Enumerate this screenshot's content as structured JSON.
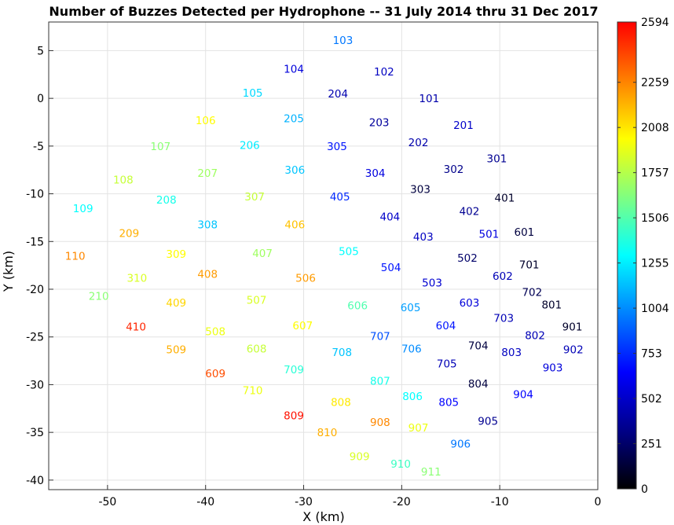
{
  "chart_data": {
    "type": "scatter",
    "title": "Number of Buzzes Detected per Hydrophone -- 31 July 2014 thru 31 Dec 2017",
    "xlabel": "X (km)",
    "ylabel": "Y (km)",
    "xlim": [
      -56,
      0
    ],
    "ylim": [
      -41,
      8
    ],
    "xticks": [
      -50,
      -40,
      -30,
      -20,
      -10,
      0
    ],
    "yticks": [
      5,
      0,
      -5,
      -10,
      -15,
      -20,
      -25,
      -30,
      -35,
      -40
    ],
    "grid": true,
    "colormap": "jet",
    "colorbar": {
      "min": 0,
      "max": 2594,
      "ticks": [
        2594,
        2259,
        2008,
        1757,
        1506,
        1255,
        1004,
        753,
        502,
        251,
        0
      ]
    },
    "points": [
      {
        "label": "103",
        "x": -26.0,
        "y": 6.1,
        "value": 950
      },
      {
        "label": "104",
        "x": -31.0,
        "y": 3.1,
        "value": 550
      },
      {
        "label": "102",
        "x": -21.8,
        "y": 2.8,
        "value": 480
      },
      {
        "label": "105",
        "x": -35.2,
        "y": 0.6,
        "value": 1200
      },
      {
        "label": "204",
        "x": -26.5,
        "y": 0.5,
        "value": 430
      },
      {
        "label": "101",
        "x": -17.2,
        "y": 0.0,
        "value": 420
      },
      {
        "label": "106",
        "x": -40.0,
        "y": -2.3,
        "value": 1950
      },
      {
        "label": "205",
        "x": -31.0,
        "y": -2.1,
        "value": 1100
      },
      {
        "label": "203",
        "x": -22.3,
        "y": -2.5,
        "value": 380
      },
      {
        "label": "201",
        "x": -13.7,
        "y": -2.8,
        "value": 500
      },
      {
        "label": "107",
        "x": -44.6,
        "y": -5.0,
        "value": 1650
      },
      {
        "label": "206",
        "x": -35.5,
        "y": -4.9,
        "value": 1250
      },
      {
        "label": "305",
        "x": -26.6,
        "y": -5.0,
        "value": 700
      },
      {
        "label": "202",
        "x": -18.3,
        "y": -4.6,
        "value": 420
      },
      {
        "label": "301",
        "x": -10.3,
        "y": -6.3,
        "value": 350
      },
      {
        "label": "108",
        "x": -48.4,
        "y": -8.5,
        "value": 1800
      },
      {
        "label": "207",
        "x": -39.8,
        "y": -7.8,
        "value": 1700
      },
      {
        "label": "306",
        "x": -30.9,
        "y": -7.5,
        "value": 1150
      },
      {
        "label": "304",
        "x": -22.7,
        "y": -7.8,
        "value": 560
      },
      {
        "label": "302",
        "x": -14.7,
        "y": -7.4,
        "value": 330
      },
      {
        "label": "109",
        "x": -52.5,
        "y": -11.5,
        "value": 1300
      },
      {
        "label": "208",
        "x": -44.0,
        "y": -10.6,
        "value": 1350
      },
      {
        "label": "307",
        "x": -35.0,
        "y": -10.3,
        "value": 1800
      },
      {
        "label": "405",
        "x": -26.3,
        "y": -10.3,
        "value": 750
      },
      {
        "label": "303",
        "x": -18.1,
        "y": -9.5,
        "value": 150
      },
      {
        "label": "401",
        "x": -9.5,
        "y": -10.4,
        "value": 100
      },
      {
        "label": "404",
        "x": -21.2,
        "y": -12.4,
        "value": 500
      },
      {
        "label": "402",
        "x": -13.1,
        "y": -11.8,
        "value": 350
      },
      {
        "label": "209",
        "x": -47.8,
        "y": -14.1,
        "value": 2150
      },
      {
        "label": "308",
        "x": -39.8,
        "y": -13.2,
        "value": 1150
      },
      {
        "label": "406",
        "x": -30.9,
        "y": -13.2,
        "value": 2100
      },
      {
        "label": "403",
        "x": -17.8,
        "y": -14.5,
        "value": 480
      },
      {
        "label": "501",
        "x": -11.1,
        "y": -14.2,
        "value": 560
      },
      {
        "label": "601",
        "x": -7.5,
        "y": -14.0,
        "value": 150
      },
      {
        "label": "110",
        "x": -53.3,
        "y": -16.5,
        "value": 2250
      },
      {
        "label": "309",
        "x": -43.0,
        "y": -16.3,
        "value": 1950
      },
      {
        "label": "407",
        "x": -34.2,
        "y": -16.2,
        "value": 1700
      },
      {
        "label": "505",
        "x": -25.4,
        "y": -16.0,
        "value": 1300
      },
      {
        "label": "502",
        "x": -13.3,
        "y": -16.7,
        "value": 250
      },
      {
        "label": "701",
        "x": -7.0,
        "y": -17.4,
        "value": 100
      },
      {
        "label": "504",
        "x": -21.1,
        "y": -17.7,
        "value": 700
      },
      {
        "label": "310",
        "x": -47.0,
        "y": -18.8,
        "value": 1850
      },
      {
        "label": "408",
        "x": -39.8,
        "y": -18.4,
        "value": 2200
      },
      {
        "label": "506",
        "x": -29.8,
        "y": -18.8,
        "value": 2200
      },
      {
        "label": "602",
        "x": -9.7,
        "y": -18.6,
        "value": 450
      },
      {
        "label": "503",
        "x": -16.9,
        "y": -19.3,
        "value": 520
      },
      {
        "label": "210",
        "x": -50.9,
        "y": -20.7,
        "value": 1650
      },
      {
        "label": "702",
        "x": -6.7,
        "y": -20.3,
        "value": 200
      },
      {
        "label": "409",
        "x": -43.0,
        "y": -21.4,
        "value": 2050
      },
      {
        "label": "507",
        "x": -34.8,
        "y": -21.1,
        "value": 1850
      },
      {
        "label": "606",
        "x": -24.5,
        "y": -21.7,
        "value": 1500
      },
      {
        "label": "605",
        "x": -19.1,
        "y": -21.9,
        "value": 1050
      },
      {
        "label": "603",
        "x": -13.1,
        "y": -21.4,
        "value": 550
      },
      {
        "label": "801",
        "x": -4.7,
        "y": -21.6,
        "value": 100
      },
      {
        "label": "703",
        "x": -9.6,
        "y": -23.0,
        "value": 450
      },
      {
        "label": "410",
        "x": -47.1,
        "y": -23.9,
        "value": 2500
      },
      {
        "label": "508",
        "x": -39.0,
        "y": -24.4,
        "value": 1900
      },
      {
        "label": "607",
        "x": -30.1,
        "y": -23.8,
        "value": 1950
      },
      {
        "label": "604",
        "x": -15.5,
        "y": -23.8,
        "value": 700
      },
      {
        "label": "901",
        "x": -2.6,
        "y": -23.9,
        "value": 100
      },
      {
        "label": "707",
        "x": -22.2,
        "y": -24.9,
        "value": 850
      },
      {
        "label": "802",
        "x": -6.4,
        "y": -24.8,
        "value": 450
      },
      {
        "label": "509",
        "x": -43.0,
        "y": -26.3,
        "value": 2150
      },
      {
        "label": "608",
        "x": -34.8,
        "y": -26.2,
        "value": 1800
      },
      {
        "label": "708",
        "x": -26.1,
        "y": -26.6,
        "value": 1150
      },
      {
        "label": "706",
        "x": -19.0,
        "y": -26.2,
        "value": 1000
      },
      {
        "label": "704",
        "x": -12.2,
        "y": -25.9,
        "value": 150
      },
      {
        "label": "803",
        "x": -8.8,
        "y": -26.6,
        "value": 480
      },
      {
        "label": "902",
        "x": -2.5,
        "y": -26.3,
        "value": 450
      },
      {
        "label": "705",
        "x": -15.4,
        "y": -27.8,
        "value": 450
      },
      {
        "label": "903",
        "x": -4.6,
        "y": -28.2,
        "value": 550
      },
      {
        "label": "609",
        "x": -39.0,
        "y": -28.8,
        "value": 2400
      },
      {
        "label": "709",
        "x": -31.0,
        "y": -28.4,
        "value": 1400
      },
      {
        "label": "807",
        "x": -22.2,
        "y": -29.6,
        "value": 1350
      },
      {
        "label": "804",
        "x": -12.2,
        "y": -29.9,
        "value": 150
      },
      {
        "label": "710",
        "x": -35.2,
        "y": -30.6,
        "value": 1900
      },
      {
        "label": "806",
        "x": -18.9,
        "y": -31.2,
        "value": 1300
      },
      {
        "label": "904",
        "x": -7.6,
        "y": -31.0,
        "value": 650
      },
      {
        "label": "808",
        "x": -26.2,
        "y": -31.8,
        "value": 2000
      },
      {
        "label": "805",
        "x": -15.2,
        "y": -31.8,
        "value": 650
      },
      {
        "label": "809",
        "x": -31.0,
        "y": -33.2,
        "value": 2550
      },
      {
        "label": "908",
        "x": -22.2,
        "y": -33.9,
        "value": 2250
      },
      {
        "label": "905",
        "x": -11.2,
        "y": -33.8,
        "value": 350
      },
      {
        "label": "907",
        "x": -18.3,
        "y": -34.5,
        "value": 1900
      },
      {
        "label": "810",
        "x": -27.6,
        "y": -35.0,
        "value": 2150
      },
      {
        "label": "906",
        "x": -14.0,
        "y": -36.2,
        "value": 950
      },
      {
        "label": "909",
        "x": -24.3,
        "y": -37.5,
        "value": 1850
      },
      {
        "label": "910",
        "x": -20.1,
        "y": -38.3,
        "value": 1450
      },
      {
        "label": "911",
        "x": -17.0,
        "y": -39.1,
        "value": 1650
      }
    ]
  }
}
